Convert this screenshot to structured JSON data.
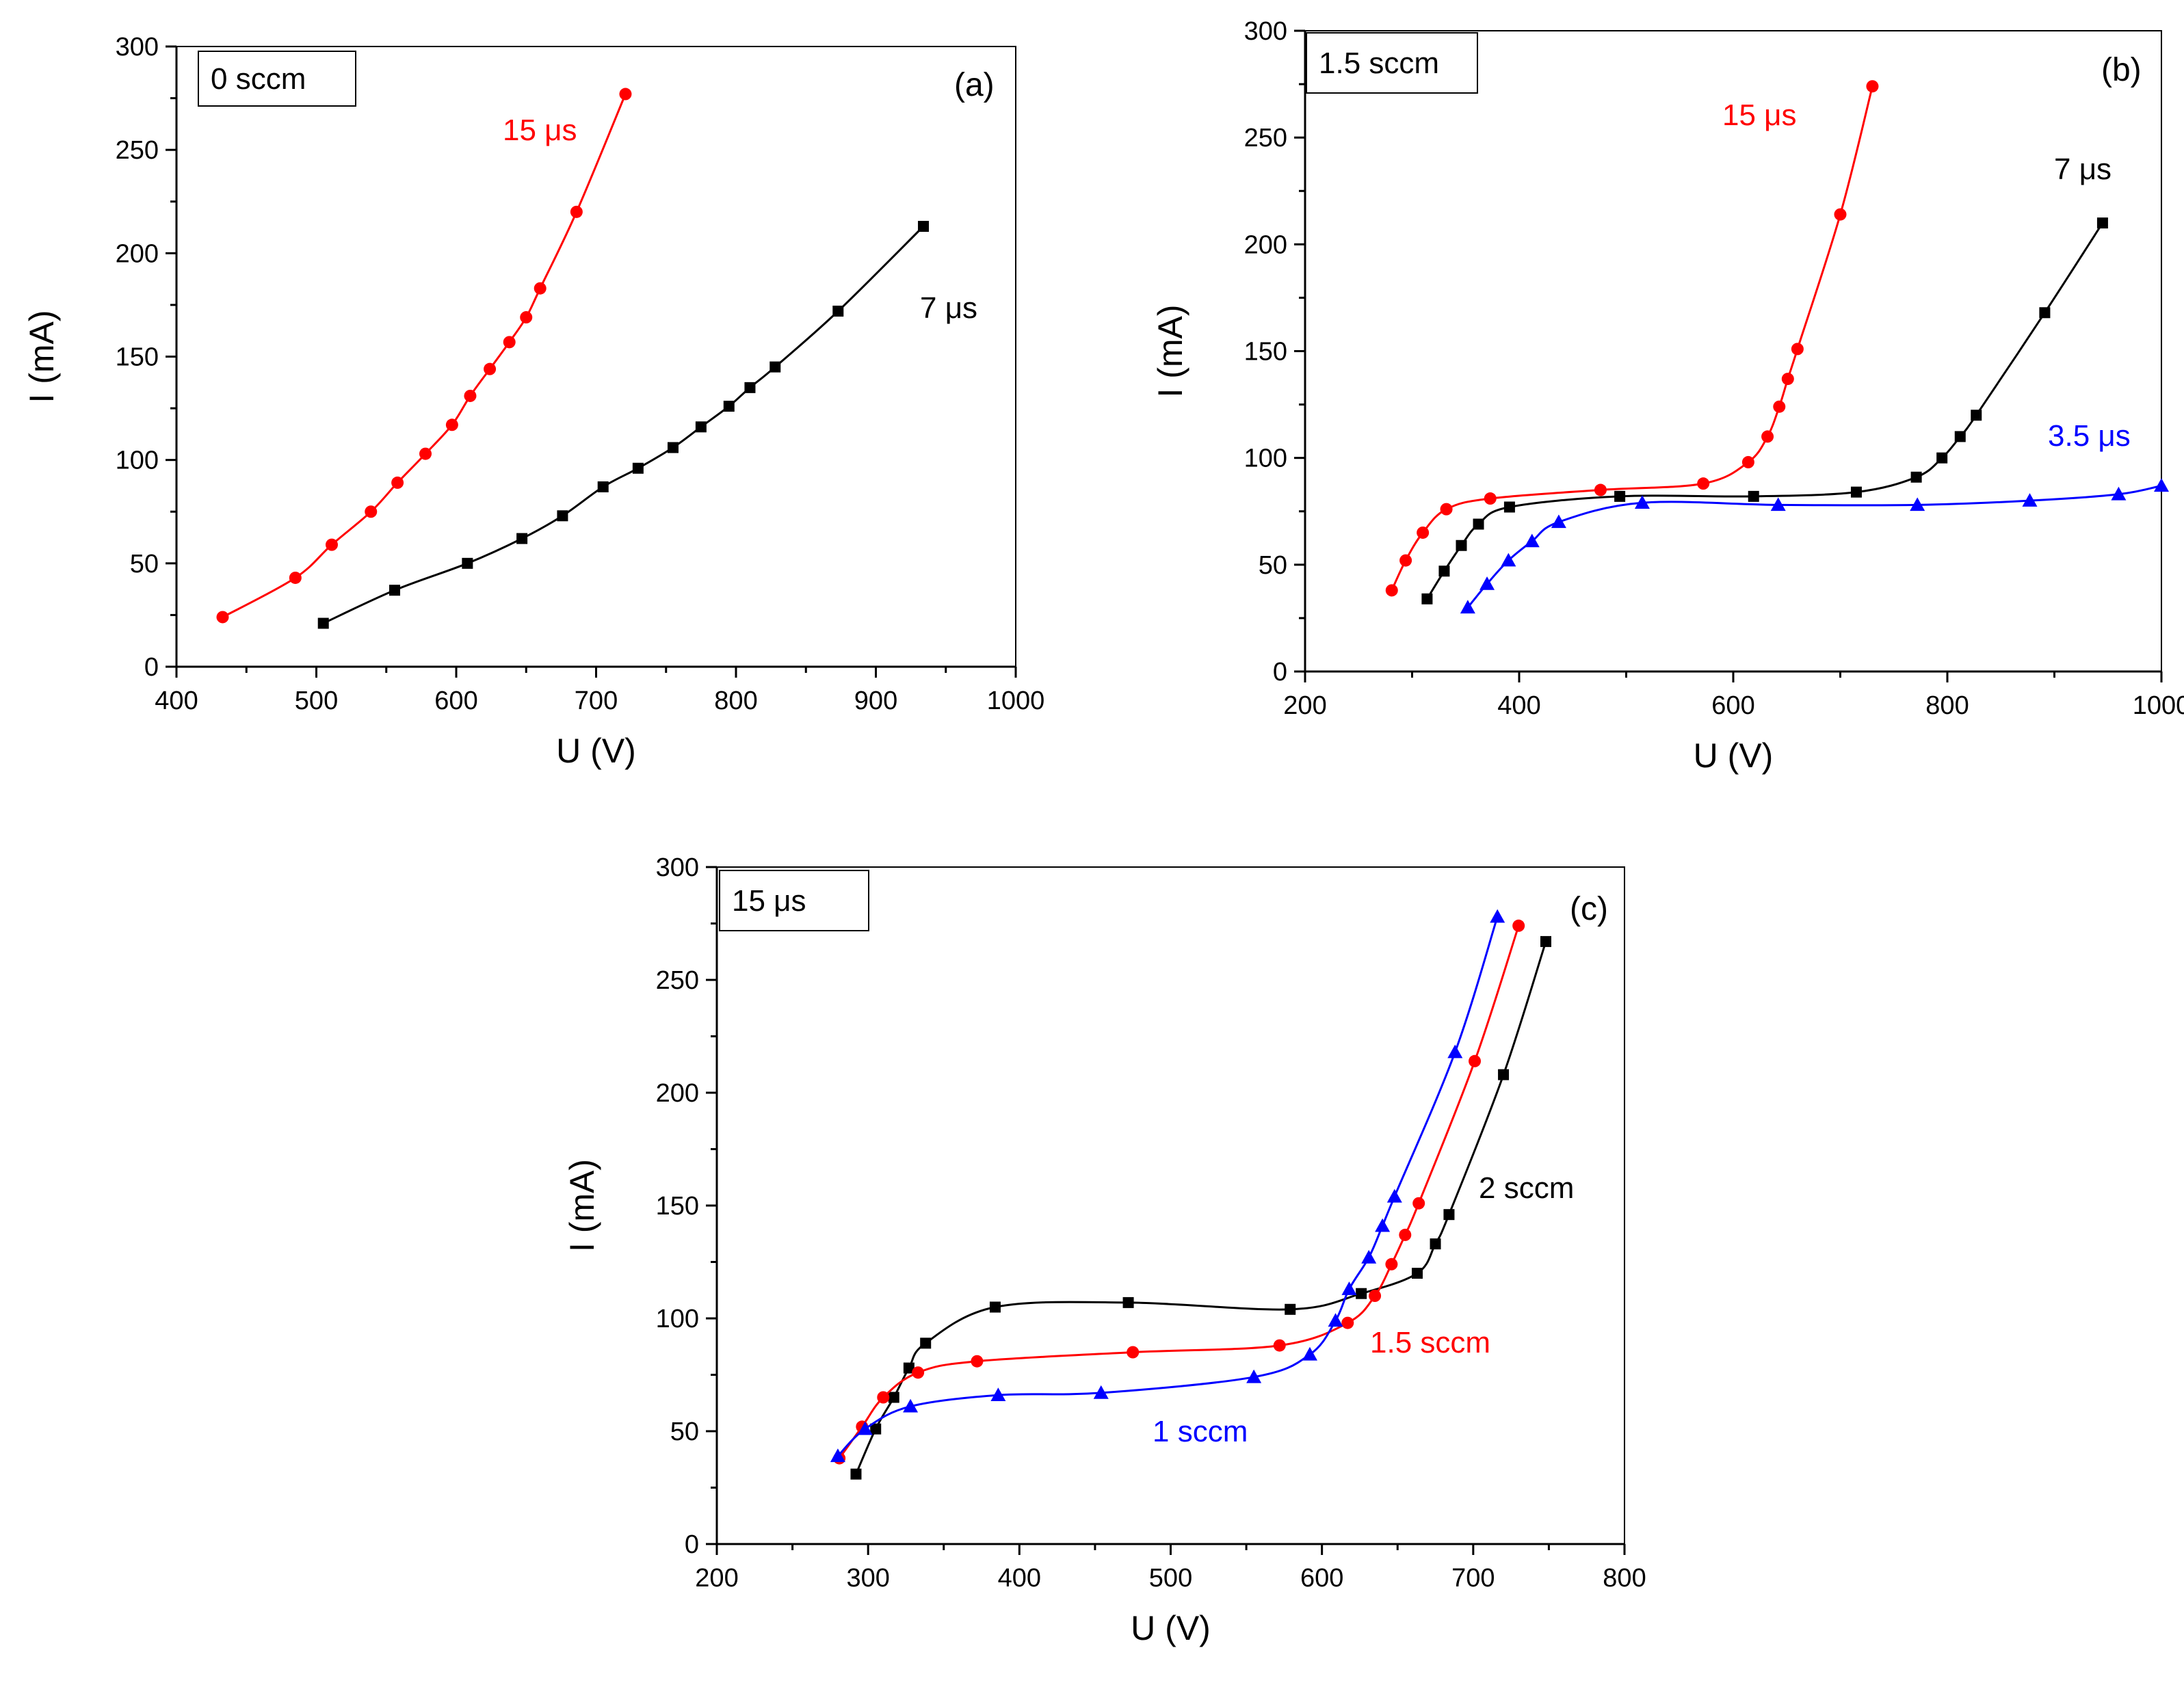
{
  "chart_data": [
    {
      "id": "a",
      "type": "line",
      "panel_label": "(a)",
      "box_label": "0 sccm",
      "xlabel": "U (V)",
      "ylabel": "I (mA)",
      "xlim": [
        400,
        1000
      ],
      "ylim": [
        0,
        300
      ],
      "xticks": [
        400,
        500,
        600,
        700,
        800,
        900,
        1000
      ],
      "yticks": [
        0,
        50,
        100,
        150,
        200,
        250,
        300
      ],
      "series": [
        {
          "name": "15 μs",
          "color": "#ff0000",
          "marker": "circle",
          "x": [
            433,
            485,
            511,
            539,
            558,
            578,
            597,
            610,
            624,
            638,
            650,
            660,
            686,
            721
          ],
          "y": [
            24,
            43,
            59,
            75,
            89,
            103,
            117,
            131,
            144,
            157,
            169,
            183,
            220,
            277
          ]
        },
        {
          "name": "7 μs",
          "color": "#000000",
          "marker": "square",
          "x": [
            505,
            556,
            608,
            647,
            676,
            705,
            730,
            755,
            775,
            795,
            810,
            828,
            873,
            934
          ],
          "y": [
            21,
            37,
            50,
            62,
            73,
            87,
            96,
            106,
            116,
            126,
            135,
            145,
            172,
            213
          ]
        }
      ]
    },
    {
      "id": "b",
      "type": "line",
      "panel_label": "(b)",
      "box_label": "1.5 sccm",
      "xlabel": "U (V)",
      "ylabel": "I (mA)",
      "xlim": [
        200,
        1000
      ],
      "ylim": [
        0,
        300
      ],
      "xticks": [
        200,
        400,
        600,
        800,
        1000
      ],
      "yticks": [
        0,
        50,
        100,
        150,
        200,
        250,
        300
      ],
      "series": [
        {
          "name": "15 μs",
          "color": "#ff0000",
          "marker": "circle",
          "x": [
            281,
            294,
            310,
            332,
            373,
            476,
            572,
            614,
            632,
            643,
            651,
            660,
            700,
            730
          ],
          "y": [
            38,
            52,
            65,
            76,
            81,
            85,
            88,
            98,
            110,
            124,
            137,
            151,
            214,
            274
          ]
        },
        {
          "name": "7 μs",
          "color": "#000000",
          "marker": "square",
          "x": [
            314,
            330,
            346,
            362,
            391,
            494,
            619,
            715,
            771,
            795,
            812,
            827,
            891,
            945
          ],
          "y": [
            34,
            47,
            59,
            69,
            77,
            82,
            82,
            84,
            91,
            100,
            110,
            120,
            168,
            210
          ]
        },
        {
          "name": "3.5 μs",
          "color": "#0000ff",
          "marker": "triangle",
          "x": [
            352,
            370,
            390,
            412,
            437,
            515,
            642,
            772,
            877,
            960,
            1000
          ],
          "y": [
            30,
            41,
            52,
            61,
            70,
            79,
            78,
            78,
            80,
            83,
            87
          ]
        }
      ]
    },
    {
      "id": "c",
      "type": "line",
      "panel_label": "(c)",
      "box_label": "15 μs",
      "xlabel": "U (V)",
      "ylabel": "I (mA)",
      "xlim": [
        200,
        800
      ],
      "ylim": [
        0,
        300
      ],
      "xticks": [
        200,
        300,
        400,
        500,
        600,
        700,
        800
      ],
      "yticks": [
        0,
        50,
        100,
        150,
        200,
        250,
        300
      ],
      "series": [
        {
          "name": "2 sccm",
          "color": "#000000",
          "marker": "square",
          "x": [
            292,
            305,
            317,
            327,
            338,
            384,
            472,
            579,
            626,
            663,
            675,
            684,
            720,
            748
          ],
          "y": [
            31,
            51,
            65,
            78,
            89,
            105,
            107,
            104,
            111,
            120,
            133,
            146,
            208,
            267
          ]
        },
        {
          "name": "1.5 sccm",
          "color": "#ff0000",
          "marker": "circle",
          "x": [
            281,
            296,
            310,
            333,
            372,
            475,
            572,
            617,
            635,
            646,
            655,
            664,
            701,
            730
          ],
          "y": [
            38,
            52,
            65,
            76,
            81,
            85,
            88,
            98,
            110,
            124,
            137,
            151,
            214,
            274
          ]
        },
        {
          "name": "1 sccm",
          "color": "#0000ff",
          "marker": "triangle",
          "x": [
            280,
            298,
            328,
            386,
            454,
            555,
            592,
            609,
            618,
            631,
            640,
            648,
            688,
            716
          ],
          "y": [
            39,
            51,
            61,
            66,
            67,
            74,
            84,
            99,
            113,
            127,
            141,
            154,
            218,
            278
          ]
        }
      ]
    }
  ]
}
